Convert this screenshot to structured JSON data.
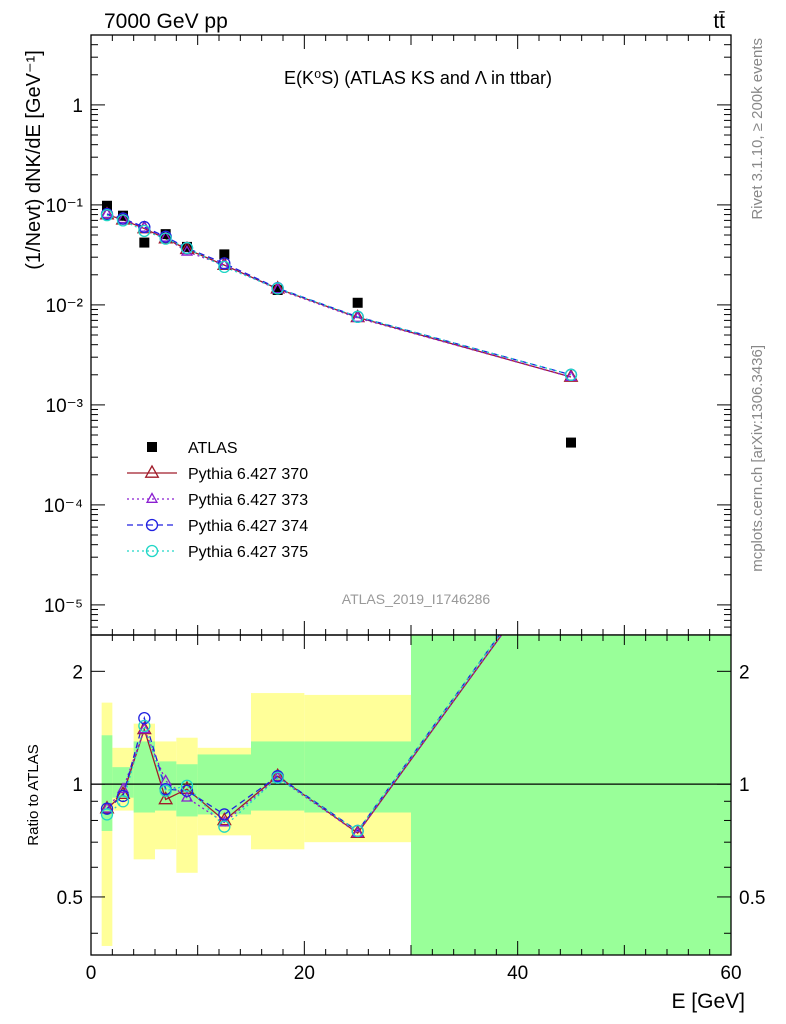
{
  "header": {
    "energy_label": "7000 GeV pp",
    "process_label": "tt̄"
  },
  "side_labels": {
    "rivet": "Rivet 3.1.10, ≥ 200k events",
    "mcplots": "mcplots.cern.ch [arXiv:1306.3436]"
  },
  "chart_data": [
    {
      "type": "scatter",
      "panel": "main",
      "title": "E(K⁰S) (ATLAS KS and Λ in ttbar)",
      "ylabel": "(1/Nevt) dNK/dE [GeV⁻¹]",
      "yscale": "log",
      "xlim": [
        0,
        60
      ],
      "ylim": [
        5e-06,
        5
      ],
      "y_ticks": [
        "1",
        "10⁻¹",
        "10⁻²",
        "10⁻³",
        "10⁻⁴",
        "10⁻⁵"
      ],
      "watermark": "ATLAS_2019_I1746286",
      "legend_position": "bottom-left",
      "x": [
        1.5,
        3,
        5,
        7,
        9,
        12.5,
        17.5,
        25,
        45
      ],
      "series": [
        {
          "name": "ATLAS",
          "color": "#000000",
          "marker": "square",
          "values": [
            0.098,
            0.078,
            0.042,
            0.051,
            0.038,
            0.032,
            0.0141,
            0.0105,
            0.00042
          ]
        },
        {
          "name": "Pythia 6.427 370",
          "color": "#a01c2a",
          "marker": "triangle",
          "line": "solid",
          "values": [
            0.08,
            0.071,
            0.058,
            0.046,
            0.036,
            0.025,
            0.0145,
            0.0075,
            0.0019
          ]
        },
        {
          "name": "Pythia 6.427 373",
          "color": "#8b1fd1",
          "marker": "triangle-small",
          "line": "dotted",
          "values": [
            0.081,
            0.072,
            0.059,
            0.047,
            0.034,
            0.025,
            0.0143,
            0.0074,
            0.0019
          ]
        },
        {
          "name": "Pythia 6.427 374",
          "color": "#2020e0",
          "marker": "circle",
          "line": "dashed",
          "values": [
            0.081,
            0.073,
            0.06,
            0.048,
            0.037,
            0.026,
            0.0147,
            0.0076,
            0.002
          ]
        },
        {
          "name": "Pythia 6.427 375",
          "color": "#20d6c6",
          "marker": "circle",
          "line": "dotted",
          "values": [
            0.079,
            0.07,
            0.055,
            0.046,
            0.037,
            0.024,
            0.0146,
            0.0076,
            0.002
          ]
        }
      ]
    },
    {
      "type": "line",
      "panel": "ratio",
      "ylabel": "Ratio to ATLAS",
      "xlabel": "E [GeV]",
      "yscale": "log",
      "xlim": [
        0,
        60
      ],
      "ylim": [
        0.35,
        2.5
      ],
      "y_ticks": [
        "0.5",
        "1",
        "2"
      ],
      "x_ticks": [
        "0",
        "20",
        "40",
        "60"
      ],
      "bins": [
        [
          1,
          2
        ],
        [
          2,
          4
        ],
        [
          4,
          6
        ],
        [
          6,
          8
        ],
        [
          8,
          10
        ],
        [
          10,
          15
        ],
        [
          15,
          20
        ],
        [
          20,
          30
        ],
        [
          30,
          60
        ]
      ],
      "band_yellow": [
        [
          0.37,
          1.65
        ],
        [
          0.85,
          1.25
        ],
        [
          0.63,
          1.45
        ],
        [
          0.67,
          1.3
        ],
        [
          0.58,
          1.33
        ],
        [
          0.73,
          1.25
        ],
        [
          0.67,
          1.75
        ],
        [
          0.7,
          1.73
        ],
        [
          0.35,
          2.5
        ]
      ],
      "band_green": [
        [
          0.75,
          1.35
        ],
        [
          0.92,
          1.11
        ],
        [
          0.84,
          1.3
        ],
        [
          0.85,
          1.15
        ],
        [
          0.82,
          1.13
        ],
        [
          0.83,
          1.2
        ],
        [
          0.85,
          1.3
        ],
        [
          0.84,
          1.3
        ],
        [
          0.35,
          2.5
        ]
      ],
      "x": [
        1.5,
        3,
        5,
        7,
        9,
        12.5,
        17.5,
        25,
        45
      ],
      "series": [
        {
          "name": "Pythia 6.427 370",
          "color": "#a01c2a",
          "values": [
            0.86,
            0.94,
            1.4,
            0.91,
            0.97,
            0.8,
            1.05,
            0.74,
            4.5
          ]
        },
        {
          "name": "Pythia 6.427 373",
          "color": "#8b1fd1",
          "values": [
            0.86,
            0.97,
            1.4,
            1.02,
            0.92,
            0.79,
            1.04,
            0.74,
            4.5
          ]
        },
        {
          "name": "Pythia 6.427 374",
          "color": "#2020e0",
          "values": [
            0.86,
            0.93,
            1.5,
            0.97,
            0.96,
            0.83,
            1.05,
            0.75,
            4.6
          ]
        },
        {
          "name": "Pythia 6.427 375",
          "color": "#20d6c6",
          "values": [
            0.83,
            0.9,
            1.43,
            0.96,
            0.99,
            0.77,
            1.04,
            0.75,
            4.6
          ]
        }
      ]
    }
  ]
}
